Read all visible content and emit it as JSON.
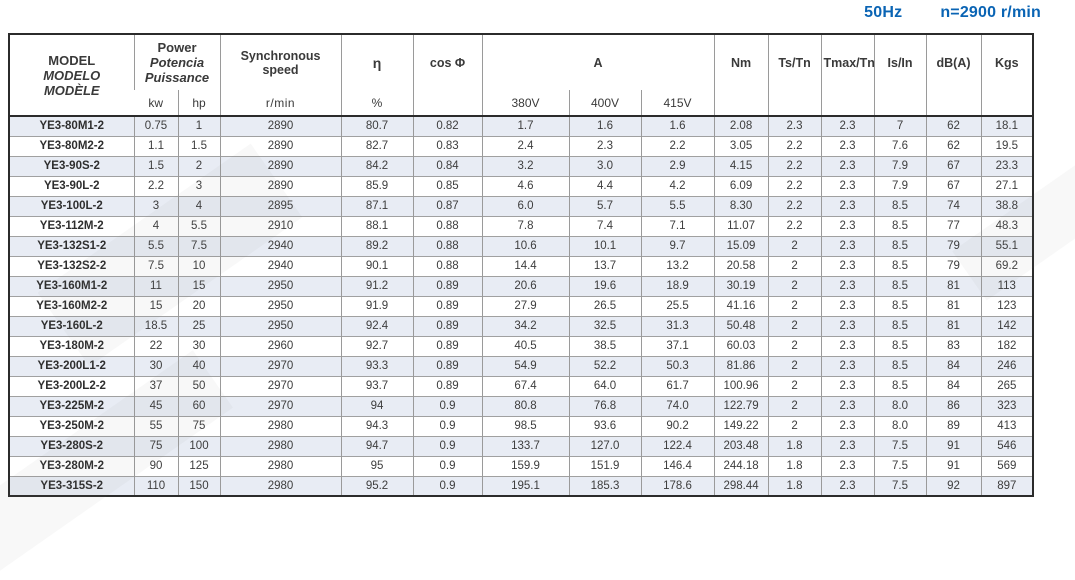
{
  "page": {
    "frequency_label": "50Hz",
    "speed_label": "n=2900 r/min",
    "accent_color": "#0a64b4",
    "stripe_color": "#e8ecf4"
  },
  "table": {
    "headers": {
      "model": [
        "MODEL",
        "MODELO",
        "MODÈLE"
      ],
      "power": [
        "Power",
        "Potencia",
        "Puissance"
      ],
      "power_units": [
        "kw",
        "hp"
      ],
      "sync_speed": [
        "Synchronous",
        "speed"
      ],
      "sync_speed_unit": "r/min",
      "eta": "η",
      "eta_unit": "%",
      "cos_phi": "cos Φ",
      "current": "A",
      "current_voltages": [
        "380V",
        "400V",
        "415V"
      ],
      "nm": "Nm",
      "ts_tn": "Ts/Tn",
      "tmax_tn": "Tmax/Tn",
      "is_in": "Is/In",
      "db": "dB(A)",
      "kgs": "Kgs"
    },
    "columns": [
      "model",
      "kw",
      "hp",
      "speed_rmin",
      "eta_pct",
      "cos_phi",
      "a_380v",
      "a_400v",
      "a_415v",
      "nm",
      "ts_tn",
      "tmax_tn",
      "is_in",
      "db_a",
      "kgs"
    ],
    "rows": [
      [
        "YE3-80M1-2",
        "0.75",
        "1",
        "2890",
        "80.7",
        "0.82",
        "1.7",
        "1.6",
        "1.6",
        "2.08",
        "2.3",
        "2.3",
        "7",
        "62",
        "18.1"
      ],
      [
        "YE3-80M2-2",
        "1.1",
        "1.5",
        "2890",
        "82.7",
        "0.83",
        "2.4",
        "2.3",
        "2.2",
        "3.05",
        "2.2",
        "2.3",
        "7.6",
        "62",
        "19.5"
      ],
      [
        "YE3-90S-2",
        "1.5",
        "2",
        "2890",
        "84.2",
        "0.84",
        "3.2",
        "3.0",
        "2.9",
        "4.15",
        "2.2",
        "2.3",
        "7.9",
        "67",
        "23.3"
      ],
      [
        "YE3-90L-2",
        "2.2",
        "3",
        "2890",
        "85.9",
        "0.85",
        "4.6",
        "4.4",
        "4.2",
        "6.09",
        "2.2",
        "2.3",
        "7.9",
        "67",
        "27.1"
      ],
      [
        "YE3-100L-2",
        "3",
        "4",
        "2895",
        "87.1",
        "0.87",
        "6.0",
        "5.7",
        "5.5",
        "8.30",
        "2.2",
        "2.3",
        "8.5",
        "74",
        "38.8"
      ],
      [
        "YE3-112M-2",
        "4",
        "5.5",
        "2910",
        "88.1",
        "0.88",
        "7.8",
        "7.4",
        "7.1",
        "11.07",
        "2.2",
        "2.3",
        "8.5",
        "77",
        "48.3"
      ],
      [
        "YE3-132S1-2",
        "5.5",
        "7.5",
        "2940",
        "89.2",
        "0.88",
        "10.6",
        "10.1",
        "9.7",
        "15.09",
        "2",
        "2.3",
        "8.5",
        "79",
        "55.1"
      ],
      [
        "YE3-132S2-2",
        "7.5",
        "10",
        "2940",
        "90.1",
        "0.88",
        "14.4",
        "13.7",
        "13.2",
        "20.58",
        "2",
        "2.3",
        "8.5",
        "79",
        "69.2"
      ],
      [
        "YE3-160M1-2",
        "11",
        "15",
        "2950",
        "91.2",
        "0.89",
        "20.6",
        "19.6",
        "18.9",
        "30.19",
        "2",
        "2.3",
        "8.5",
        "81",
        "113"
      ],
      [
        "YE3-160M2-2",
        "15",
        "20",
        "2950",
        "91.9",
        "0.89",
        "27.9",
        "26.5",
        "25.5",
        "41.16",
        "2",
        "2.3",
        "8.5",
        "81",
        "123"
      ],
      [
        "YE3-160L-2",
        "18.5",
        "25",
        "2950",
        "92.4",
        "0.89",
        "34.2",
        "32.5",
        "31.3",
        "50.48",
        "2",
        "2.3",
        "8.5",
        "81",
        "142"
      ],
      [
        "YE3-180M-2",
        "22",
        "30",
        "2960",
        "92.7",
        "0.89",
        "40.5",
        "38.5",
        "37.1",
        "60.03",
        "2",
        "2.3",
        "8.5",
        "83",
        "182"
      ],
      [
        "YE3-200L1-2",
        "30",
        "40",
        "2970",
        "93.3",
        "0.89",
        "54.9",
        "52.2",
        "50.3",
        "81.86",
        "2",
        "2.3",
        "8.5",
        "84",
        "246"
      ],
      [
        "YE3-200L2-2",
        "37",
        "50",
        "2970",
        "93.7",
        "0.89",
        "67.4",
        "64.0",
        "61.7",
        "100.96",
        "2",
        "2.3",
        "8.5",
        "84",
        "265"
      ],
      [
        "YE3-225M-2",
        "45",
        "60",
        "2970",
        "94",
        "0.9",
        "80.8",
        "76.8",
        "74.0",
        "122.79",
        "2",
        "2.3",
        "8.0",
        "86",
        "323"
      ],
      [
        "YE3-250M-2",
        "55",
        "75",
        "2980",
        "94.3",
        "0.9",
        "98.5",
        "93.6",
        "90.2",
        "149.22",
        "2",
        "2.3",
        "8.0",
        "89",
        "413"
      ],
      [
        "YE3-280S-2",
        "75",
        "100",
        "2980",
        "94.7",
        "0.9",
        "133.7",
        "127.0",
        "122.4",
        "203.48",
        "1.8",
        "2.3",
        "7.5",
        "91",
        "546"
      ],
      [
        "YE3-280M-2",
        "90",
        "125",
        "2980",
        "95",
        "0.9",
        "159.9",
        "151.9",
        "146.4",
        "244.18",
        "1.8",
        "2.3",
        "7.5",
        "91",
        "569"
      ],
      [
        "YE3-315S-2",
        "110",
        "150",
        "2980",
        "95.2",
        "0.9",
        "195.1",
        "185.3",
        "178.6",
        "298.44",
        "1.8",
        "2.3",
        "7.5",
        "92",
        "897"
      ]
    ]
  }
}
